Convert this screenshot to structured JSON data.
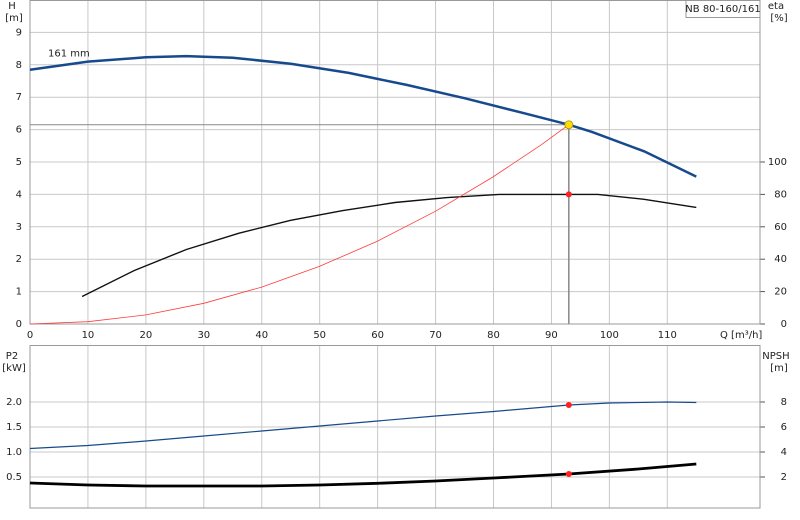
{
  "chart_data": [
    {
      "type": "line",
      "title": "NB 80-160/161",
      "ylabel": "H",
      "yunit": "[m]",
      "y2label": "eta",
      "y2unit": "[%]",
      "xlabel": "Q [m³/h]",
      "xlim": [
        0,
        126
      ],
      "xticks": [
        0,
        10,
        20,
        30,
        40,
        50,
        60,
        70,
        80,
        90,
        100,
        110
      ],
      "ylim": [
        0,
        10
      ],
      "yticks": [
        0,
        1,
        2,
        3,
        4,
        5,
        6,
        7,
        8,
        9
      ],
      "y2lim": [
        0,
        200
      ],
      "y2ticks": [
        0,
        20,
        40,
        60,
        80,
        100
      ],
      "grid": true,
      "series": [
        {
          "name": "161 mm",
          "color": "#174a8c",
          "x": [
            0,
            10,
            20,
            27,
            35,
            45,
            55,
            65,
            75,
            85,
            93,
            97,
            106,
            115
          ],
          "values": [
            7.85,
            8.1,
            8.23,
            8.27,
            8.22,
            8.03,
            7.75,
            7.38,
            6.97,
            6.52,
            6.15,
            5.93,
            5.33,
            4.55
          ]
        },
        {
          "color": "#111111",
          "axis": "y2",
          "x": [
            9,
            18,
            27,
            36,
            45,
            54,
            63,
            72,
            81,
            90,
            98,
            106,
            115
          ],
          "values": [
            17,
            33,
            46,
            56,
            64,
            70,
            75,
            78,
            80,
            80,
            80,
            77,
            72
          ]
        },
        {
          "color": "#ff3b3b",
          "x": [
            0,
            10,
            20,
            30,
            40,
            50,
            60,
            70,
            80,
            88,
            93
          ],
          "values": [
            0,
            0.07,
            0.28,
            0.64,
            1.14,
            1.78,
            2.56,
            3.48,
            4.55,
            5.5,
            6.15
          ]
        }
      ],
      "duty_point": {
        "x": 93,
        "y": 6.15,
        "y2": 80,
        "color": "#ffdd00",
        "marker_color": "#ff2020",
        "line_color": "#888888"
      }
    },
    {
      "type": "line",
      "ylabel": "P2",
      "yunit": "[kW]",
      "y2label": "NPSH",
      "y2unit": "[m]",
      "ylim": [
        -0.12,
        3.14
      ],
      "yticks": [
        {
          "value": 0.5,
          "label": "0.5"
        },
        {
          "value": 1,
          "label": "1.0"
        },
        1.5,
        {
          "value": 2,
          "label": "2.0"
        }
      ],
      "y2lim": [
        -0.48,
        12.56
      ],
      "y2ticks": [
        2,
        4,
        6,
        8
      ],
      "grid": true,
      "series": [
        {
          "color": "#174a8c",
          "x": [
            0,
            10,
            20,
            30,
            40,
            50,
            60,
            70,
            80,
            93,
            100,
            110,
            115
          ],
          "values": [
            1.07,
            1.13,
            1.22,
            1.32,
            1.42,
            1.52,
            1.62,
            1.72,
            1.81,
            1.94,
            1.98,
            2.0,
            1.99
          ]
        },
        {
          "color": "#000000",
          "axis": "y2",
          "x": [
            0,
            10,
            20,
            40,
            50,
            60,
            70,
            80,
            93,
            105,
            115
          ],
          "values": [
            1.52,
            1.36,
            1.28,
            1.28,
            1.36,
            1.5,
            1.68,
            1.92,
            2.24,
            2.64,
            3.04
          ]
        }
      ],
      "duty_point": {
        "x": 93,
        "y": 1.94,
        "y2": 2.24,
        "marker_color": "#ff2020"
      }
    }
  ]
}
